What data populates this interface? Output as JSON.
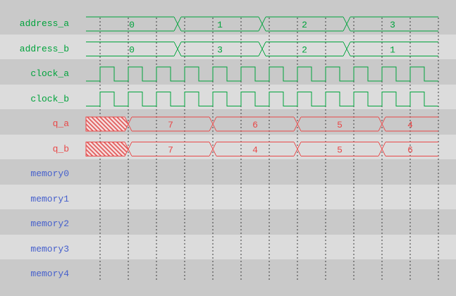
{
  "app": {
    "title": "waveform-viewer"
  },
  "colors": {
    "background": "#c9c9c9",
    "row_highlight": "#dcdcdc",
    "grid": "#3c3c3c",
    "green": "#00a33c",
    "red": "#e84848",
    "blue": "#4660cc",
    "hatch_fill": "#f6dcdc",
    "hatch_line": "#e06060"
  },
  "chart_data": {
    "type": "waveform",
    "time_axis": {
      "t_start": 0,
      "t_end": 500,
      "grid_first": 20,
      "grid_step": 40,
      "grid_count": 13
    },
    "signals": [
      {
        "name": "address_a",
        "kind": "bus",
        "color": "green",
        "segments": [
          {
            "value": "0",
            "t0": 0,
            "t1": 130
          },
          {
            "value": "1",
            "t0": 130,
            "t1": 250
          },
          {
            "value": "2",
            "t0": 250,
            "t1": 370
          },
          {
            "value": "3",
            "t0": 370,
            "t1": 500
          }
        ]
      },
      {
        "name": "address_b",
        "kind": "bus",
        "color": "green",
        "segments": [
          {
            "value": "0",
            "t0": 0,
            "t1": 130
          },
          {
            "value": "3",
            "t0": 130,
            "t1": 250
          },
          {
            "value": "2",
            "t0": 250,
            "t1": 370
          },
          {
            "value": "1",
            "t0": 370,
            "t1": 500
          }
        ]
      },
      {
        "name": "clock_a",
        "kind": "clock",
        "color": "green",
        "first_rise": 20,
        "period": 40,
        "high_width": 20,
        "t_end": 500
      },
      {
        "name": "clock_b",
        "kind": "clock",
        "color": "green",
        "first_rise": 20,
        "period": 40,
        "high_width": 20,
        "t_end": 500
      },
      {
        "name": "q_a",
        "kind": "bus",
        "color": "red",
        "segments": [
          {
            "value": "",
            "unknown": true,
            "t0": 0,
            "t1": 60
          },
          {
            "value": "7",
            "t0": 60,
            "t1": 180
          },
          {
            "value": "6",
            "t0": 180,
            "t1": 300
          },
          {
            "value": "5",
            "t0": 300,
            "t1": 420
          },
          {
            "value": "4",
            "t0": 420,
            "t1": 500
          }
        ]
      },
      {
        "name": "q_b",
        "kind": "bus",
        "color": "red",
        "segments": [
          {
            "value": "",
            "unknown": true,
            "t0": 0,
            "t1": 60
          },
          {
            "value": "7",
            "t0": 60,
            "t1": 180
          },
          {
            "value": "4",
            "t0": 180,
            "t1": 300
          },
          {
            "value": "5",
            "t0": 300,
            "t1": 420
          },
          {
            "value": "6",
            "t0": 420,
            "t1": 500
          }
        ]
      },
      {
        "name": "memory0",
        "kind": "empty",
        "color": "blue"
      },
      {
        "name": "memory1",
        "kind": "empty",
        "color": "blue"
      },
      {
        "name": "memory2",
        "kind": "empty",
        "color": "blue"
      },
      {
        "name": "memory3",
        "kind": "empty",
        "color": "blue"
      },
      {
        "name": "memory4",
        "kind": "empty",
        "color": "blue"
      }
    ]
  }
}
